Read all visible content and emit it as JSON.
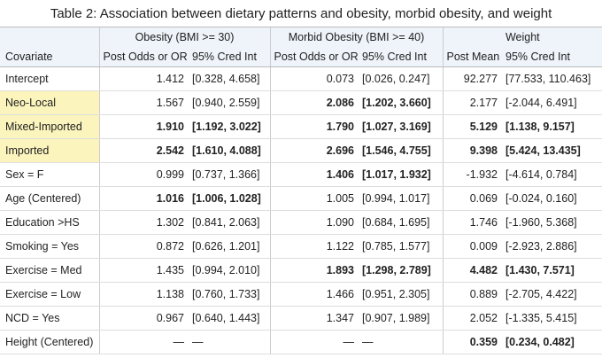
{
  "table": {
    "title": "Table 2: Association between dietary patterns and obesity, morbid obesity, and weight",
    "group_headers": [
      "Obesity (BMI >= 30)",
      "Morbid Obesity (BMI >= 40)",
      "Weight"
    ],
    "column_headers": [
      "Covariate",
      "Post Odds or OR",
      "95% Cred Int",
      "Post Odds or OR",
      "95% Cred Int",
      "Post Mean",
      "95% Cred Int"
    ],
    "rows": [
      {
        "label": "Intercept",
        "highlight": false,
        "bold_groups": [
          false,
          false,
          false
        ],
        "cells": [
          "1.412",
          "[0.328, 4.658]",
          "0.073",
          "[0.026, 0.247]",
          "92.277",
          "[77.533, 110.463]"
        ]
      },
      {
        "label": "Neo-Local",
        "highlight": true,
        "bold_groups": [
          false,
          true,
          false
        ],
        "cells": [
          "1.567",
          "[0.940, 2.559]",
          "2.086",
          "[1.202, 3.660]",
          "2.177",
          "[-2.044, 6.491]"
        ]
      },
      {
        "label": "Mixed-Imported",
        "highlight": true,
        "bold_groups": [
          true,
          true,
          true
        ],
        "cells": [
          "1.910",
          "[1.192, 3.022]",
          "1.790",
          "[1.027, 3.169]",
          "5.129",
          "[1.138, 9.157]"
        ]
      },
      {
        "label": "Imported",
        "highlight": true,
        "bold_groups": [
          true,
          true,
          true
        ],
        "cells": [
          "2.542",
          "[1.610, 4.088]",
          "2.696",
          "[1.546, 4.755]",
          "9.398",
          "[5.424, 13.435]"
        ]
      },
      {
        "label": "Sex = F",
        "highlight": false,
        "bold_groups": [
          false,
          true,
          false
        ],
        "cells": [
          "0.999",
          "[0.737, 1.366]",
          "1.406",
          "[1.017, 1.932]",
          "-1.932",
          "[-4.614, 0.784]"
        ]
      },
      {
        "label": "Age (Centered)",
        "highlight": false,
        "bold_groups": [
          true,
          false,
          false
        ],
        "cells": [
          "1.016",
          "[1.006, 1.028]",
          "1.005",
          "[0.994, 1.017]",
          "0.069",
          "[-0.024, 0.160]"
        ]
      },
      {
        "label": "Education >HS",
        "highlight": false,
        "bold_groups": [
          false,
          false,
          false
        ],
        "cells": [
          "1.302",
          "[0.841, 2.063]",
          "1.090",
          "[0.684, 1.695]",
          "1.746",
          "[-1.960, 5.368]"
        ]
      },
      {
        "label": "Smoking = Yes",
        "highlight": false,
        "bold_groups": [
          false,
          false,
          false
        ],
        "cells": [
          "0.872",
          "[0.626, 1.201]",
          "1.122",
          "[0.785, 1.577]",
          "0.009",
          "[-2.923, 2.886]"
        ]
      },
      {
        "label": "Exercise = Med",
        "highlight": false,
        "bold_groups": [
          false,
          true,
          true
        ],
        "cells": [
          "1.435",
          "[0.994, 2.010]",
          "1.893",
          "[1.298, 2.789]",
          "4.482",
          "[1.430, 7.571]"
        ]
      },
      {
        "label": "Exercise = Low",
        "highlight": false,
        "bold_groups": [
          false,
          false,
          false
        ],
        "cells": [
          "1.138",
          "[0.760, 1.733]",
          "1.466",
          "[0.951, 2.305]",
          "0.889",
          "[-2.705, 4.422]"
        ]
      },
      {
        "label": "NCD = Yes",
        "highlight": false,
        "bold_groups": [
          false,
          false,
          false
        ],
        "cells": [
          "0.967",
          "[0.640, 1.443]",
          "1.347",
          "[0.907, 1.989]",
          "2.052",
          "[-1.335, 5.415]"
        ]
      },
      {
        "label": "Height (Centered)",
        "highlight": false,
        "bold_groups": [
          false,
          false,
          true
        ],
        "cells": [
          "—",
          "—",
          "—",
          "—",
          "0.359",
          "[0.234, 0.482]"
        ]
      }
    ]
  }
}
